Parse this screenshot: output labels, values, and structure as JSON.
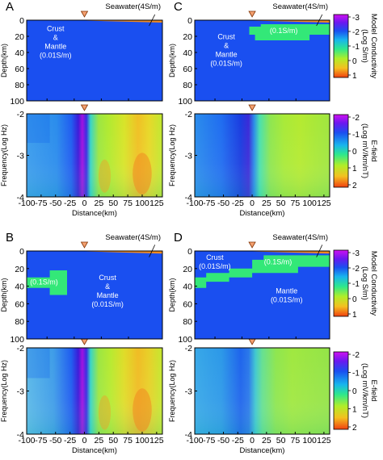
{
  "seawater_label": "Seawater(4S/m)",
  "colorbars": {
    "model": {
      "label_line1": "Model Conductivity",
      "label_line2": "(Log S/m)",
      "ticks": [
        "-3",
        "-2",
        "-1",
        "0",
        "1"
      ]
    },
    "efield": {
      "label_line1": "E-field",
      "label_line2": "(Log mV/km/nT)",
      "ticks": [
        "-2",
        "-1",
        "0",
        "1",
        "2"
      ]
    }
  },
  "colors": {
    "crust_mantle": "#1a4ff0",
    "layer_01": "#33e878",
    "seawater": "#f08a20"
  },
  "chart_data": [
    {
      "id": "A",
      "type": "heatmap",
      "panel_label": "A",
      "ylabel": "Depth(km)",
      "ylim": [
        0,
        100
      ],
      "yticks": [
        "0",
        "20",
        "40",
        "60",
        "80",
        "100"
      ],
      "annotations": [
        {
          "lines": [
            "Crust",
            "&",
            "Mantle",
            "(0.01S/m)"
          ],
          "x": -50,
          "depth": 30
        }
      ],
      "layers": []
    },
    {
      "id": "A-freq",
      "type": "heatmap",
      "xlabel": "Distance(km)",
      "ylabel": "Frequency(Log Hz)",
      "xlim": [
        -100,
        135
      ],
      "ylim": [
        -2,
        -4
      ],
      "xticks": [
        "-100",
        "-75",
        "-50",
        "-25",
        "0",
        "25",
        "50",
        "75",
        "100",
        "125"
      ],
      "yticks": [
        "-2",
        "-3",
        "-4"
      ],
      "variant": "A"
    },
    {
      "id": "B",
      "type": "heatmap",
      "panel_label": "B",
      "ylabel": "Depth(km)",
      "ylim": [
        0,
        100
      ],
      "yticks": [
        "0",
        "20",
        "40",
        "60",
        "80",
        "100"
      ],
      "annotations": [
        {
          "lines": [
            "(0.1S/m)"
          ],
          "x": -70,
          "depth": 38
        },
        {
          "lines": [
            "Crust",
            "&",
            "Mantle",
            "(0.01S/m)"
          ],
          "x": 40,
          "depth": 48
        }
      ],
      "layers": [
        [
          [
            -105,
            30
          ],
          [
            -60,
            30
          ],
          [
            -60,
            22
          ],
          [
            -30,
            22
          ],
          [
            -30,
            50
          ],
          [
            -60,
            50
          ],
          [
            -60,
            42
          ],
          [
            -105,
            42
          ]
        ]
      ]
    },
    {
      "id": "B-freq",
      "type": "heatmap",
      "xlabel": "Distance(km)",
      "ylabel": "Frequency(Log Hz)",
      "xlim": [
        -100,
        135
      ],
      "ylim": [
        -2,
        -4
      ],
      "xticks": [
        "-100",
        "-75",
        "-50",
        "-25",
        "0",
        "25",
        "50",
        "75",
        "100",
        "125"
      ],
      "yticks": [
        "-2",
        "-3",
        "-4"
      ],
      "variant": "B"
    },
    {
      "id": "C",
      "type": "heatmap",
      "panel_label": "C",
      "ylabel": "Depth(km)",
      "ylim": [
        0,
        100
      ],
      "yticks": [
        "0",
        "20",
        "40",
        "60",
        "80",
        "100"
      ],
      "annotations": [
        {
          "lines": [
            "(0.1S/m)"
          ],
          "x": 55,
          "depth": 16
        },
        {
          "lines": [
            "Crust",
            "&",
            "Mantle",
            "(0.01S/m)"
          ],
          "x": -45,
          "depth": 40
        }
      ],
      "layers": [
        [
          [
            -5,
            8
          ],
          [
            15,
            8
          ],
          [
            15,
            5
          ],
          [
            135,
            5
          ],
          [
            135,
            18
          ],
          [
            100,
            18
          ],
          [
            100,
            25
          ],
          [
            5,
            25
          ],
          [
            5,
            18
          ],
          [
            -5,
            18
          ]
        ]
      ]
    },
    {
      "id": "C-freq",
      "type": "heatmap",
      "xlabel": "Distance(km)",
      "ylabel": "Frequency(Log Hz)",
      "xlim": [
        -100,
        135
      ],
      "ylim": [
        -2,
        -4
      ],
      "xticks": [
        "-100",
        "-75",
        "-50",
        "-25",
        "0",
        "25",
        "50",
        "75",
        "100",
        "125"
      ],
      "yticks": [
        "-2",
        "-3",
        "-4"
      ],
      "variant": "C"
    },
    {
      "id": "D",
      "type": "heatmap",
      "panel_label": "D",
      "ylabel": "Depth(km)",
      "ylim": [
        0,
        100
      ],
      "yticks": [
        "0",
        "20",
        "40",
        "60",
        "80",
        "100"
      ],
      "annotations": [
        {
          "lines": [
            "Crust",
            "(0.01S/m)"
          ],
          "x": -65,
          "depth": 15
        },
        {
          "lines": [
            "(0.1S/m)"
          ],
          "x": 45,
          "depth": 15
        },
        {
          "lines": [
            "Mantle",
            "(0.01S/m)"
          ],
          "x": 60,
          "depth": 53
        }
      ],
      "layers": [
        [
          [
            -105,
            30
          ],
          [
            -80,
            30
          ],
          [
            -80,
            25
          ],
          [
            -40,
            25
          ],
          [
            -40,
            20
          ],
          [
            0,
            20
          ],
          [
            0,
            10
          ],
          [
            20,
            10
          ],
          [
            20,
            5
          ],
          [
            135,
            5
          ],
          [
            135,
            18
          ],
          [
            80,
            18
          ],
          [
            80,
            25
          ],
          [
            0,
            25
          ],
          [
            0,
            30
          ],
          [
            -40,
            30
          ],
          [
            -40,
            35
          ],
          [
            -80,
            35
          ],
          [
            -80,
            42
          ],
          [
            -105,
            42
          ]
        ]
      ]
    },
    {
      "id": "D-freq",
      "type": "heatmap",
      "xlabel": "Distance(km)",
      "ylabel": "Frequency(Log Hz)",
      "xlim": [
        -100,
        135
      ],
      "ylim": [
        -2,
        -4
      ],
      "xticks": [
        "-100",
        "-75",
        "-50",
        "-25",
        "0",
        "25",
        "50",
        "75",
        "100",
        "125"
      ],
      "yticks": [
        "-2",
        "-3",
        "-4"
      ],
      "variant": "D"
    }
  ]
}
